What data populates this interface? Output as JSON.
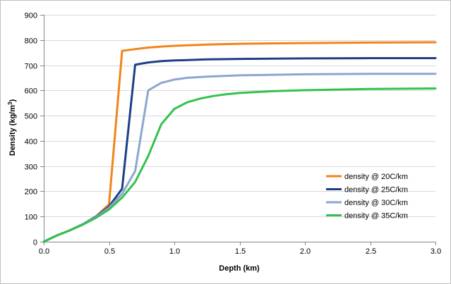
{
  "chart_data": {
    "type": "line",
    "xlabel": "Depth (km)",
    "ylabel_main": "Density (kg/m",
    "ylabel_sup": "3",
    "ylabel_close": ")",
    "xlim": [
      0,
      3
    ],
    "ylim": [
      0,
      900
    ],
    "x_ticks": [
      0,
      0.5,
      1.0,
      1.5,
      2.0,
      2.5,
      3.0
    ],
    "x_tick_labels": [
      "0.0",
      "0.5",
      "1.0",
      "1.5",
      "2.0",
      "2.5",
      "3.0"
    ],
    "y_ticks": [
      0,
      100,
      200,
      300,
      400,
      500,
      600,
      700,
      800,
      900
    ],
    "y_tick_labels": [
      "0",
      "100",
      "200",
      "300",
      "400",
      "500",
      "600",
      "700",
      "800",
      "900"
    ],
    "grid": "horizontal",
    "legend_position": "bottom-right",
    "series": [
      {
        "name": "density @ 20C/km",
        "color": "#f08519",
        "points": [
          [
            0,
            0
          ],
          [
            0.1,
            25
          ],
          [
            0.2,
            45
          ],
          [
            0.3,
            70
          ],
          [
            0.4,
            100
          ],
          [
            0.5,
            148
          ],
          [
            0.6,
            757
          ],
          [
            0.7,
            764
          ],
          [
            0.8,
            770
          ],
          [
            0.9,
            774
          ],
          [
            1.0,
            777
          ],
          [
            1.25,
            782
          ],
          [
            1.5,
            785
          ],
          [
            2.0,
            788
          ],
          [
            2.5,
            790
          ],
          [
            3.0,
            791
          ]
        ]
      },
      {
        "name": "density @ 25C/km",
        "color": "#1d3f86",
        "points": [
          [
            0,
            0
          ],
          [
            0.1,
            25
          ],
          [
            0.2,
            45
          ],
          [
            0.3,
            70
          ],
          [
            0.4,
            100
          ],
          [
            0.5,
            140
          ],
          [
            0.6,
            210
          ],
          [
            0.7,
            702
          ],
          [
            0.8,
            711
          ],
          [
            0.9,
            716
          ],
          [
            1.0,
            719
          ],
          [
            1.25,
            723
          ],
          [
            1.5,
            725
          ],
          [
            2.0,
            727
          ],
          [
            2.5,
            728
          ],
          [
            3.0,
            728
          ]
        ]
      },
      {
        "name": "density @ 30C/km",
        "color": "#8ea6cf",
        "points": [
          [
            0,
            0
          ],
          [
            0.1,
            25
          ],
          [
            0.2,
            45
          ],
          [
            0.3,
            70
          ],
          [
            0.4,
            98
          ],
          [
            0.5,
            135
          ],
          [
            0.6,
            190
          ],
          [
            0.7,
            280
          ],
          [
            0.8,
            600
          ],
          [
            0.9,
            630
          ],
          [
            1.0,
            643
          ],
          [
            1.1,
            650
          ],
          [
            1.25,
            655
          ],
          [
            1.5,
            660
          ],
          [
            2.0,
            664
          ],
          [
            2.5,
            666
          ],
          [
            3.0,
            666
          ]
        ]
      },
      {
        "name": "density @ 35C/km",
        "color": "#33c14e",
        "points": [
          [
            0,
            0
          ],
          [
            0.1,
            25
          ],
          [
            0.2,
            45
          ],
          [
            0.3,
            68
          ],
          [
            0.4,
            95
          ],
          [
            0.5,
            128
          ],
          [
            0.6,
            175
          ],
          [
            0.7,
            237
          ],
          [
            0.8,
            340
          ],
          [
            0.9,
            466
          ],
          [
            1.0,
            527
          ],
          [
            1.1,
            553
          ],
          [
            1.2,
            568
          ],
          [
            1.3,
            578
          ],
          [
            1.4,
            585
          ],
          [
            1.5,
            590
          ],
          [
            1.75,
            597
          ],
          [
            2.0,
            601
          ],
          [
            2.5,
            606
          ],
          [
            3.0,
            608
          ]
        ]
      }
    ]
  }
}
